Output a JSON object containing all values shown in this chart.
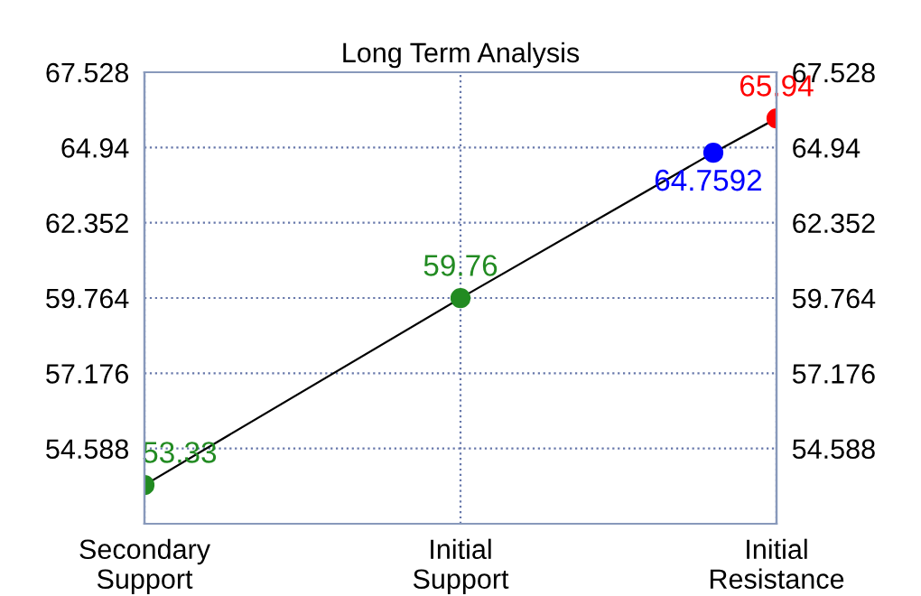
{
  "chart_data": {
    "type": "line",
    "title": "Long Term Analysis",
    "categories": [
      "Secondary\nSupport",
      null,
      null,
      null,
      null,
      "Initial\nSupport",
      null,
      null,
      null,
      null,
      "Initial\nResistance"
    ],
    "series": [
      {
        "color": "#000000",
        "colors": [
          "#228b22",
          null,
          null,
          null,
          null,
          "#228b22",
          null,
          null,
          null,
          "#0000ff",
          "#ff0000"
        ],
        "values": [
          53.33,
          null,
          null,
          null,
          null,
          59.76,
          null,
          null,
          null,
          64.7592,
          65.94
        ]
      }
    ],
    "data_labels": true,
    "marker": "circle",
    "ylim": [
      52.0,
      67.528
    ],
    "yticks": [
      54.588,
      57.176,
      59.764,
      62.352,
      64.94,
      67.528
    ],
    "y2lim": [
      52.0,
      67.528
    ],
    "y2ticks": [
      54.588,
      57.176,
      59.764,
      62.352,
      64.94,
      67.528
    ],
    "grid": true
  }
}
